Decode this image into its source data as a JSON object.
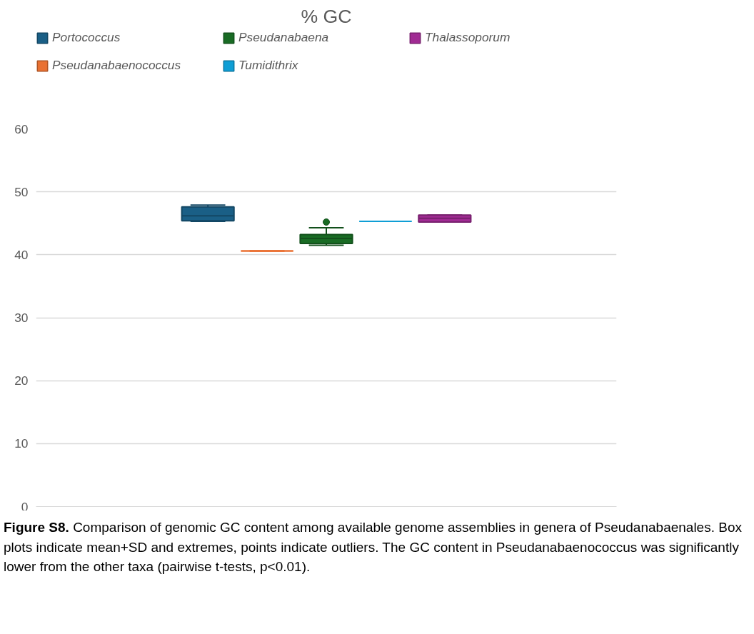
{
  "chart_data": {
    "type": "box",
    "title": "% GC",
    "categories": [
      null
    ],
    "series": [
      {
        "name": "Portococcus",
        "color": "#1a5f86",
        "boxes": [
          {
            "low": 45.3,
            "q1": 45.4,
            "median": 46.2,
            "q3": 47.6,
            "high": 47.9
          }
        ]
      },
      {
        "name": "Pseudanabaenococcus",
        "color": "#e97132",
        "boxes": [
          {
            "low": 40.6,
            "q1": 40.6,
            "median": 40.6,
            "q3": 40.6,
            "high": 40.6
          }
        ]
      },
      {
        "name": "Pseudanabaena",
        "color": "#196b24",
        "boxes": [
          {
            "low": 41.5,
            "q1": 41.8,
            "median": 42.6,
            "q3": 43.2,
            "high": 44.3,
            "outliers": [
              45.2
            ]
          }
        ]
      },
      {
        "name": "Tumidithrix",
        "color": "#0f9ed5",
        "boxes": [
          {
            "low": 45.3,
            "q1": 45.3,
            "median": 45.3,
            "q3": 45.3,
            "high": 45.3
          }
        ]
      },
      {
        "name": "Thalassoporum",
        "color": "#a02b93",
        "boxes": [
          {
            "low": 45.2,
            "q1": 45.2,
            "median": 45.8,
            "q3": 46.3,
            "high": 46.3
          }
        ]
      }
    ],
    "ylim": [
      0,
      60
    ],
    "yticks": [
      0,
      10,
      20,
      30,
      40,
      50,
      60
    ],
    "grid": "y",
    "legend": "top",
    "annotations": [
      "Figure S8.",
      "Comparison of genomic GC content among available genome assemblies in genera of Pseudanabaenales. Box plots indicate mean+SD and extremes, points indicate outliers. The GC content in  Pseudanabaenococcus was significantly lower from the other taxa (pairwise t-tests, p<0.01)."
    ]
  }
}
